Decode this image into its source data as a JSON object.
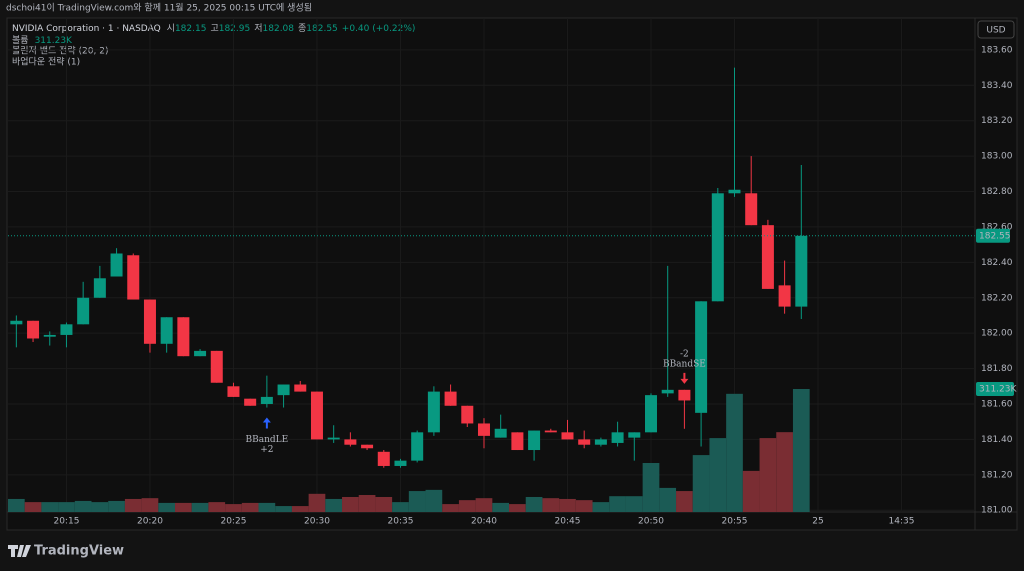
{
  "header": "dschoi41이 TradingView.com와 함께 11월 25, 2025 00:15 UTC에 생성됨",
  "brand": "TradingView",
  "chart_data": {
    "type": "candlestick",
    "symbol": "NVIDIA Corporation · 1 · NASDAQ",
    "currency": "USD",
    "legend": {
      "open_label": "시",
      "high_label": "고",
      "low_label": "저",
      "close_label": "종",
      "change": "+0.40 (+0.22%)"
    },
    "indicators": [
      "볼린저 밴드 전략 (20, 2)",
      "바업다운 전략 (1)"
    ],
    "up_color": "#089981",
    "down_color": "#f23645",
    "volume_up_color": "#1b5b55",
    "volume_down_color": "#7a2d33",
    "open": [
      182.05,
      182.07,
      181.98,
      181.99,
      182.05,
      182.2,
      182.32,
      182.44,
      182.19,
      181.94,
      182.09,
      181.87,
      181.9,
      181.7,
      181.63,
      181.6,
      181.65,
      181.71,
      181.67,
      181.4,
      181.4,
      181.37,
      181.33,
      181.25,
      181.28,
      181.44,
      181.67,
      181.59,
      181.49,
      181.41,
      181.44,
      181.34,
      181.45,
      181.44,
      181.4,
      181.37,
      181.38,
      181.41,
      181.44,
      181.66,
      181.68,
      181.55,
      182.18,
      182.79,
      182.79,
      182.61,
      182.27,
      182.15
    ],
    "high": [
      182.1,
      182.07,
      182.01,
      182.06,
      182.29,
      182.38,
      182.48,
      182.45,
      182.19,
      182.09,
      182.09,
      181.91,
      181.9,
      181.72,
      181.63,
      181.76,
      181.71,
      181.73,
      181.67,
      181.48,
      181.44,
      181.37,
      181.34,
      181.29,
      181.45,
      181.7,
      181.71,
      181.59,
      181.52,
      181.54,
      181.44,
      181.45,
      181.46,
      181.51,
      181.45,
      181.41,
      181.5,
      181.44,
      181.66,
      182.38,
      181.68,
      182.18,
      182.82,
      183.5,
      183.0,
      182.64,
      182.41,
      182.95
    ],
    "low": [
      181.92,
      181.95,
      181.93,
      181.92,
      182.05,
      182.2,
      182.32,
      182.19,
      181.89,
      181.89,
      181.87,
      181.87,
      181.72,
      181.64,
      181.59,
      181.58,
      181.58,
      181.67,
      181.4,
      181.38,
      181.36,
      181.34,
      181.24,
      181.24,
      181.27,
      181.42,
      181.59,
      181.47,
      181.35,
      181.41,
      181.34,
      181.28,
      181.44,
      181.4,
      181.35,
      181.36,
      181.36,
      181.28,
      181.44,
      181.64,
      181.46,
      181.36,
      182.18,
      182.77,
      182.61,
      182.25,
      182.11,
      182.08
    ],
    "close": [
      182.07,
      181.97,
      181.99,
      182.05,
      182.2,
      182.31,
      182.45,
      182.19,
      181.94,
      182.09,
      181.87,
      181.9,
      181.72,
      181.64,
      181.59,
      181.64,
      181.71,
      181.67,
      181.4,
      181.41,
      181.37,
      181.35,
      181.25,
      181.28,
      181.44,
      181.67,
      181.59,
      181.49,
      181.42,
      181.46,
      181.34,
      181.45,
      181.44,
      181.4,
      181.37,
      181.4,
      181.44,
      181.44,
      181.65,
      181.68,
      181.62,
      182.18,
      182.79,
      182.81,
      182.61,
      182.25,
      182.15,
      182.55
    ],
    "volume": {
      "name": "볼륨",
      "values": [
        33000,
        25000,
        25000,
        25000,
        28000,
        25000,
        28000,
        33000,
        35000,
        23000,
        23000,
        23000,
        25000,
        20000,
        23000,
        23000,
        15000,
        15000,
        46000,
        33000,
        38000,
        43000,
        38000,
        25000,
        53000,
        56000,
        20000,
        30000,
        35000,
        23000,
        20000,
        38000,
        35000,
        33000,
        30000,
        25000,
        40000,
        40000,
        124000,
        61000,
        53000,
        144000,
        187000,
        299000,
        104000,
        187000,
        202000,
        311230
      ],
      "last_label": "311.23K"
    },
    "signals": [
      {
        "text": "BBandLE",
        "qty": "+2",
        "at": 15,
        "side": "long"
      },
      {
        "text": "BBandSE",
        "qty": "-2",
        "at": 40,
        "side": "short"
      }
    ],
    "ylim": [
      180.99,
      183.78
    ],
    "yticks": [
      {
        "value": 181.0,
        "label": "181.00"
      },
      {
        "value": 181.2,
        "label": "181.20"
      },
      {
        "value": 181.4,
        "label": "181.40"
      },
      {
        "value": 181.6,
        "label": "181.60"
      },
      {
        "value": 181.8,
        "label": "181.80"
      },
      {
        "value": 182.0,
        "label": "182.00"
      },
      {
        "value": 182.2,
        "label": "182.20"
      },
      {
        "value": 182.4,
        "label": "182.40"
      },
      {
        "value": 182.6,
        "label": "182.60"
      },
      {
        "value": 182.8,
        "label": "182.80"
      },
      {
        "value": 183.0,
        "label": "183.00"
      },
      {
        "value": 183.2,
        "label": "183.20"
      },
      {
        "value": 183.4,
        "label": "183.40"
      },
      {
        "value": 183.6,
        "label": "183.60"
      }
    ],
    "xlim": [
      -0.5,
      57.4
    ],
    "xticks": [
      {
        "value": 3,
        "label": "20:15"
      },
      {
        "value": 8,
        "label": "20:20"
      },
      {
        "value": 13,
        "label": "20:25"
      },
      {
        "value": 18,
        "label": "20:30"
      },
      {
        "value": 23,
        "label": "20:35"
      },
      {
        "value": 28,
        "label": "20:40"
      },
      {
        "value": 33,
        "label": "20:45"
      },
      {
        "value": 38,
        "label": "20:50"
      },
      {
        "value": 43,
        "label": "20:55"
      },
      {
        "value": 48,
        "label": "25"
      },
      {
        "value": 53,
        "label": "14:35"
      }
    ],
    "grid": true
  }
}
